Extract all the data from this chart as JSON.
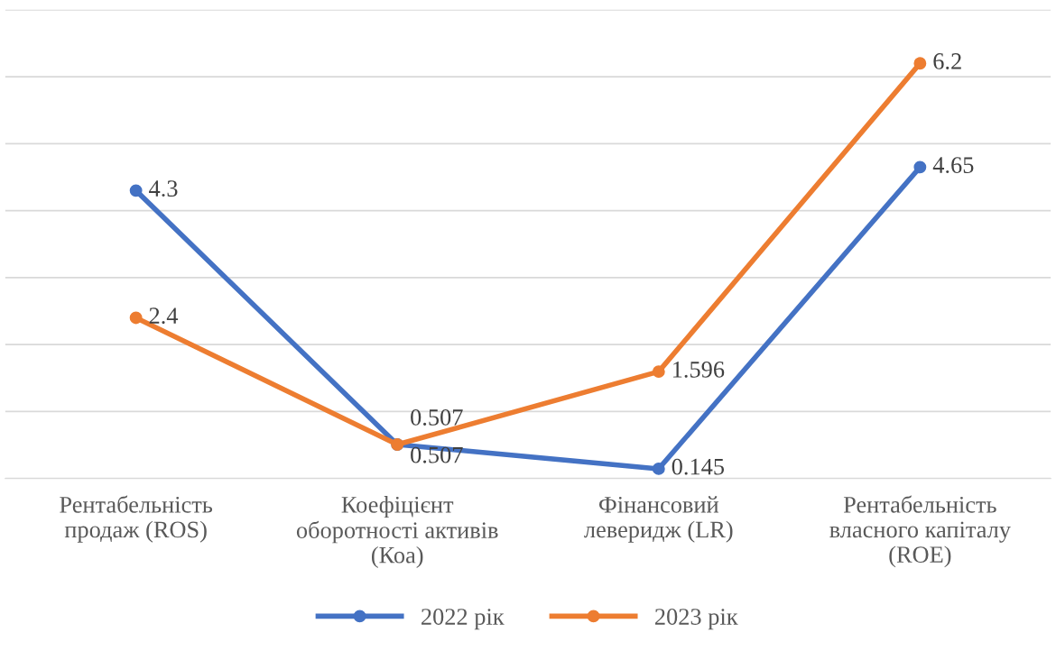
{
  "chart_data": {
    "type": "line",
    "categories": [
      "Рентабельність\nпродаж (ROS)",
      "Коефіцієнт\nоборотності активів\n(Коа)",
      "Фінансовий\nлеверидж (LR)",
      "Рентабельність\nвласного капіталу\n(ROE)"
    ],
    "series": [
      {
        "name": "2022 рік",
        "color": "#4472c4",
        "values": [
          4.3,
          0.507,
          0.145,
          4.65
        ]
      },
      {
        "name": "2023 рік",
        "color": "#ed7d31",
        "values": [
          2.4,
          0.507,
          1.596,
          6.2
        ]
      }
    ],
    "ylim": [
      0,
      7
    ],
    "yticks": [
      {
        "value": 0,
        "label": null
      },
      {
        "value": 1,
        "label": null
      },
      {
        "value": 2,
        "label": null
      },
      {
        "value": 3,
        "label": null
      },
      {
        "value": 4,
        "label": null
      },
      {
        "value": 5,
        "label": null
      },
      {
        "value": 6,
        "label": null
      },
      {
        "value": 7,
        "label": null
      }
    ],
    "tick_labels": "x",
    "grid": "y",
    "legend": "bottom",
    "marker": "circle",
    "line_style": "solid",
    "data_labels": true
  }
}
